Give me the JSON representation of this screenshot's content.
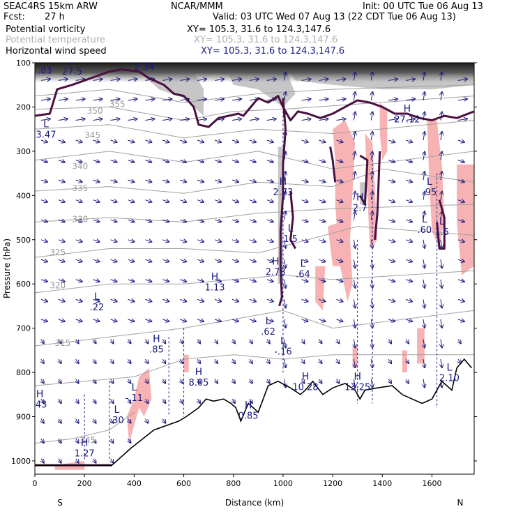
{
  "header": {
    "model": "SEAC4RS 15km ARW",
    "forecast_label": "Fcst:",
    "forecast_hours": "27 h",
    "org": "NCAR/MMM",
    "init": "Init: 00 UTC Tue 06 Aug 13",
    "valid": "Valid: 03 UTC Wed 07 Aug 13 (22 CDT Tue 06 Aug 13)"
  },
  "legend": [
    {
      "label": "Potential vorticity",
      "xy": "XY= 105.3, 31.6 to 124.3,147.6",
      "color": "#000000",
      "xy_color": "#000000"
    },
    {
      "label": "Potential temperature",
      "xy": "XY= 105.3, 31.6 to 124.3,147.6",
      "color": "#b0b0b0",
      "xy_color": "#b0b0b0"
    },
    {
      "label": "Horizontal wind speed",
      "xy": "XY= 105.3, 31.6 to 124.3,147.6",
      "color": "#000000",
      "xy_color": "#1a1a80"
    }
  ],
  "colors": {
    "pv_line": "#4a1040",
    "theta_line": "#a0a0a0",
    "wind_vector": "#1a1a80",
    "shade_pink": "#f7b3b3",
    "shade_gray": "#b8b8b8",
    "terrain": "#000000"
  },
  "chart_data": {
    "type": "cross-section",
    "xlabel": "Distance (km)",
    "ylabel": "Pressure (hPa)",
    "xlim": [
      0,
      1770
    ],
    "ylim": [
      1030,
      100
    ],
    "x_ticks": [
      0,
      200,
      400,
      600,
      800,
      1000,
      1200,
      1400,
      1600
    ],
    "y_ticks": [
      100,
      200,
      300,
      400,
      500,
      600,
      700,
      800,
      900,
      1000
    ],
    "x_tick_labels": [
      "0",
      "200",
      "400",
      "600",
      "800",
      "1000",
      "1200",
      "1400",
      "1600"
    ],
    "y_tick_labels": [
      "100",
      "200",
      "300",
      "400",
      "500",
      "600",
      "700",
      "800",
      "900",
      "1000"
    ],
    "left_end_label": "S",
    "right_end_label": "N",
    "terrain": [
      [
        0,
        1010
      ],
      [
        310,
        1010
      ],
      [
        390,
        970
      ],
      [
        480,
        930
      ],
      [
        580,
        910
      ],
      [
        610,
        900
      ],
      [
        660,
        880
      ],
      [
        690,
        860
      ],
      [
        720,
        865
      ],
      [
        760,
        860
      ],
      [
        790,
        870
      ],
      [
        810,
        880
      ],
      [
        830,
        910
      ],
      [
        860,
        870
      ],
      [
        880,
        880
      ],
      [
        900,
        890
      ],
      [
        940,
        830
      ],
      [
        980,
        820
      ],
      [
        1030,
        835
      ],
      [
        1070,
        850
      ],
      [
        1090,
        840
      ],
      [
        1120,
        820
      ],
      [
        1160,
        850
      ],
      [
        1200,
        835
      ],
      [
        1250,
        825
      ],
      [
        1290,
        840
      ],
      [
        1310,
        860
      ],
      [
        1330,
        840
      ],
      [
        1380,
        835
      ],
      [
        1440,
        830
      ],
      [
        1480,
        850
      ],
      [
        1520,
        860
      ],
      [
        1560,
        870
      ],
      [
        1600,
        860
      ],
      [
        1640,
        820
      ],
      [
        1680,
        840
      ],
      [
        1700,
        790
      ],
      [
        1730,
        770
      ],
      [
        1760,
        790
      ]
    ],
    "theta_labels": [
      {
        "text": "355",
        "x": 300,
        "p": 200
      },
      {
        "text": "350",
        "x": 210,
        "p": 215
      },
      {
        "text": "345",
        "x": 200,
        "p": 270
      },
      {
        "text": "340",
        "x": 150,
        "p": 340
      },
      {
        "text": "335",
        "x": 150,
        "p": 390
      },
      {
        "text": "330",
        "x": 150,
        "p": 460
      },
      {
        "text": "325",
        "x": 60,
        "p": 535
      },
      {
        "text": "320",
        "x": 60,
        "p": 610
      },
      {
        "text": "315",
        "x": 80,
        "p": 740
      },
      {
        "text": "345",
        "x": 180,
        "p": 960
      }
    ],
    "hl_labels": [
      {
        "kind": "L",
        "value": "2.34",
        "x": 440,
        "p": 112
      },
      {
        "kind": "L",
        "value": ".83",
        "x": 40,
        "p": 120
      },
      {
        "kind": "L",
        "value": "27.5",
        "x": 150,
        "p": 122
      },
      {
        "kind": "L",
        "value": "3.47",
        "x": 45,
        "p": 265
      },
      {
        "kind": "L",
        "value": "1.5",
        "x": 1030,
        "p": 500
      },
      {
        "kind": "H",
        "value": "2.73",
        "x": 1000,
        "p": 395
      },
      {
        "kind": "H",
        "value": "2.7",
        "x": 1310,
        "p": 430
      },
      {
        "kind": "L",
        "value": ".95",
        "x": 1590,
        "p": 395
      },
      {
        "kind": "L",
        "value": ".60",
        "x": 1570,
        "p": 480
      },
      {
        "kind": "H",
        "value": "1.13",
        "x": 725,
        "p": 610
      },
      {
        "kind": "H",
        "value": "2.73",
        "x": 970,
        "p": 575
      },
      {
        "kind": "L",
        "value": ".64",
        "x": 1080,
        "p": 580
      },
      {
        "kind": "L",
        "value": ".22",
        "x": 250,
        "p": 655
      },
      {
        "kind": "L",
        "value": ".62",
        "x": 940,
        "p": 710
      },
      {
        "kind": "H",
        "value": ".85",
        "x": 490,
        "p": 750
      },
      {
        "kind": "L",
        "value": "-.16",
        "x": 1000,
        "p": 755
      },
      {
        "kind": "H",
        "value": "8.05",
        "x": 660,
        "p": 825
      },
      {
        "kind": "H",
        "value": "10.28",
        "x": 1090,
        "p": 835
      },
      {
        "kind": "H",
        "value": "13.25",
        "x": 1300,
        "p": 835
      },
      {
        "kind": "L",
        "value": "2.10",
        "x": 1670,
        "p": 815
      },
      {
        "kind": "L",
        "value": "-.11",
        "x": 400,
        "p": 860
      },
      {
        "kind": "H",
        "value": "0.85",
        "x": 860,
        "p": 900
      },
      {
        "kind": "L",
        "value": ".30",
        "x": 330,
        "p": 910
      },
      {
        "kind": "H",
        "value": "1.27",
        "x": 200,
        "p": 985
      },
      {
        "kind": "H",
        "value": ".43",
        "x": 20,
        "p": 875
      },
      {
        "kind": "H",
        "value": "27.12",
        "x": 1500,
        "p": 230
      },
      {
        "kind": "L",
        "value": "1.5",
        "x": 1640,
        "p": 485
      }
    ],
    "pink_regions": [
      [
        [
          1200,
          250
        ],
        [
          1250,
          230
        ],
        [
          1290,
          280
        ],
        [
          1280,
          390
        ],
        [
          1270,
          500
        ],
        [
          1280,
          600
        ],
        [
          1260,
          640
        ],
        [
          1230,
          560
        ],
        [
          1210,
          420
        ],
        [
          1210,
          320
        ]
      ],
      [
        [
          1330,
          260
        ],
        [
          1360,
          280
        ],
        [
          1370,
          380
        ],
        [
          1380,
          500
        ],
        [
          1350,
          520
        ],
        [
          1340,
          400
        ]
      ],
      [
        [
          1390,
          190
        ],
        [
          1420,
          210
        ],
        [
          1420,
          300
        ],
        [
          1400,
          320
        ],
        [
          1390,
          260
        ]
      ],
      [
        [
          1580,
          230
        ],
        [
          1620,
          230
        ],
        [
          1640,
          330
        ],
        [
          1650,
          450
        ],
        [
          1630,
          520
        ],
        [
          1600,
          480
        ],
        [
          1590,
          380
        ]
      ],
      [
        [
          1700,
          330
        ],
        [
          1770,
          330
        ],
        [
          1770,
          560
        ],
        [
          1720,
          580
        ],
        [
          1700,
          460
        ]
      ],
      [
        [
          1180,
          470
        ],
        [
          1230,
          460
        ],
        [
          1240,
          560
        ],
        [
          1200,
          560
        ]
      ],
      [
        [
          1130,
          560
        ],
        [
          1170,
          560
        ],
        [
          1160,
          660
        ],
        [
          1130,
          640
        ]
      ],
      [
        [
          420,
          810
        ],
        [
          460,
          790
        ],
        [
          470,
          860
        ],
        [
          440,
          900
        ],
        [
          420,
          880
        ],
        [
          400,
          920
        ],
        [
          380,
          960
        ],
        [
          370,
          900
        ],
        [
          400,
          860
        ]
      ],
      [
        [
          600,
          760
        ],
        [
          620,
          760
        ],
        [
          620,
          800
        ],
        [
          600,
          800
        ]
      ],
      [
        [
          1280,
          740
        ],
        [
          1300,
          740
        ],
        [
          1300,
          790
        ],
        [
          1280,
          790
        ]
      ],
      [
        [
          1480,
          750
        ],
        [
          1500,
          750
        ],
        [
          1500,
          800
        ],
        [
          1480,
          800
        ]
      ],
      [
        [
          1540,
          700
        ],
        [
          1570,
          700
        ],
        [
          1570,
          780
        ],
        [
          1540,
          780
        ]
      ],
      [
        [
          80,
          1010
        ],
        [
          200,
          1000
        ],
        [
          200,
          1020
        ],
        [
          80,
          1020
        ]
      ]
    ],
    "gray_regions": [
      [
        [
          440,
          100
        ],
        [
          620,
          100
        ],
        [
          680,
          160
        ],
        [
          680,
          220
        ],
        [
          600,
          180
        ],
        [
          500,
          160
        ],
        [
          440,
          130
        ]
      ],
      [
        [
          760,
          100
        ],
        [
          1000,
          100
        ],
        [
          1050,
          170
        ],
        [
          1000,
          200
        ],
        [
          900,
          160
        ],
        [
          800,
          150
        ]
      ],
      [
        [
          1000,
          100
        ],
        [
          1770,
          100
        ],
        [
          1770,
          150
        ],
        [
          1600,
          160
        ],
        [
          1400,
          160
        ],
        [
          1200,
          150
        ],
        [
          1050,
          140
        ]
      ],
      [
        [
          980,
          290
        ],
        [
          1000,
          290
        ],
        [
          1000,
          600
        ],
        [
          980,
          600
        ]
      ],
      [
        [
          1310,
          370
        ],
        [
          1330,
          370
        ],
        [
          1330,
          420
        ],
        [
          1310,
          420
        ]
      ]
    ],
    "pv_lines": [
      [
        [
          0,
          220
        ],
        [
          60,
          215
        ],
        [
          90,
          160
        ],
        [
          150,
          150
        ],
        [
          200,
          140
        ],
        [
          250,
          130
        ],
        [
          300,
          120
        ],
        [
          350,
          115
        ],
        [
          420,
          120
        ],
        [
          460,
          135
        ],
        [
          520,
          150
        ],
        [
          560,
          170
        ],
        [
          600,
          175
        ],
        [
          640,
          200
        ],
        [
          660,
          240
        ],
        [
          700,
          245
        ],
        [
          740,
          225
        ],
        [
          780,
          220
        ],
        [
          820,
          215
        ],
        [
          840,
          220
        ],
        [
          870,
          200
        ],
        [
          900,
          180
        ],
        [
          940,
          190
        ],
        [
          980,
          175
        ],
        [
          1000,
          200
        ],
        [
          1030,
          230
        ],
        [
          1060,
          210
        ],
        [
          1100,
          215
        ],
        [
          1150,
          225
        ],
        [
          1200,
          215
        ],
        [
          1250,
          200
        ],
        [
          1300,
          185
        ],
        [
          1350,
          190
        ],
        [
          1400,
          200
        ],
        [
          1450,
          215
        ],
        [
          1500,
          215
        ],
        [
          1550,
          225
        ],
        [
          1600,
          230
        ],
        [
          1650,
          220
        ],
        [
          1700,
          225
        ],
        [
          1770,
          210
        ]
      ],
      [
        [
          1000,
          180
        ],
        [
          1010,
          250
        ],
        [
          1000,
          330
        ],
        [
          1000,
          400
        ],
        [
          990,
          480
        ],
        [
          990,
          560
        ],
        [
          995,
          630
        ],
        [
          985,
          650
        ]
      ],
      [
        [
          1030,
          390
        ],
        [
          1040,
          450
        ],
        [
          1030,
          500
        ],
        [
          1050,
          520
        ]
      ],
      [
        [
          1190,
          290
        ],
        [
          1200,
          320
        ],
        [
          1210,
          370
        ]
      ],
      [
        [
          1310,
          310
        ],
        [
          1340,
          320
        ],
        [
          1330,
          420
        ],
        [
          1310,
          400
        ]
      ],
      [
        [
          1630,
          410
        ],
        [
          1650,
          450
        ],
        [
          1650,
          520
        ],
        [
          1630,
          520
        ],
        [
          1620,
          460
        ]
      ],
      [
        [
          1390,
          300
        ],
        [
          1380,
          440
        ],
        [
          1370,
          500
        ]
      ],
      [
        [
          0,
          1010
        ],
        [
          310,
          1010
        ]
      ]
    ],
    "theta_lines": [
      [
        [
          0,
          175
        ],
        [
          300,
          160
        ],
        [
          600,
          190
        ],
        [
          900,
          170
        ],
        [
          1200,
          160
        ],
        [
          1770,
          150
        ]
      ],
      [
        [
          0,
          205
        ],
        [
          300,
          200
        ],
        [
          600,
          230
        ],
        [
          800,
          210
        ],
        [
          1000,
          205
        ],
        [
          1770,
          175
        ]
      ],
      [
        [
          0,
          250
        ],
        [
          300,
          240
        ],
        [
          600,
          270
        ],
        [
          900,
          250
        ],
        [
          1200,
          260
        ],
        [
          1770,
          230
        ]
      ],
      [
        [
          0,
          320
        ],
        [
          300,
          300
        ],
        [
          600,
          325
        ],
        [
          900,
          300
        ],
        [
          1200,
          340
        ],
        [
          1770,
          300
        ]
      ],
      [
        [
          0,
          390
        ],
        [
          300,
          380
        ],
        [
          600,
          395
        ],
        [
          900,
          370
        ],
        [
          1200,
          380
        ],
        [
          1400,
          340
        ],
        [
          1770,
          370
        ]
      ],
      [
        [
          0,
          460
        ],
        [
          300,
          450
        ],
        [
          600,
          460
        ],
        [
          900,
          440
        ],
        [
          1200,
          430
        ],
        [
          1770,
          420
        ]
      ],
      [
        [
          0,
          540
        ],
        [
          300,
          520
        ],
        [
          600,
          520
        ],
        [
          900,
          530
        ],
        [
          1100,
          500
        ],
        [
          1300,
          470
        ],
        [
          1770,
          490
        ]
      ],
      [
        [
          0,
          620
        ],
        [
          300,
          600
        ],
        [
          600,
          600
        ],
        [
          800,
          590
        ],
        [
          1000,
          580
        ],
        [
          1200,
          590
        ],
        [
          1770,
          570
        ]
      ],
      [
        [
          0,
          740
        ],
        [
          300,
          720
        ],
        [
          600,
          700
        ],
        [
          800,
          680
        ],
        [
          1000,
          660
        ],
        [
          1200,
          700
        ],
        [
          1770,
          660
        ]
      ],
      [
        [
          0,
          830
        ],
        [
          200,
          820
        ],
        [
          400,
          810
        ],
        [
          600,
          770
        ],
        [
          800,
          760
        ],
        [
          1000,
          770
        ],
        [
          1200,
          760
        ],
        [
          1770,
          760
        ]
      ],
      [
        [
          0,
          960
        ],
        [
          150,
          950
        ],
        [
          300,
          930
        ],
        [
          400,
          890
        ]
      ]
    ]
  }
}
